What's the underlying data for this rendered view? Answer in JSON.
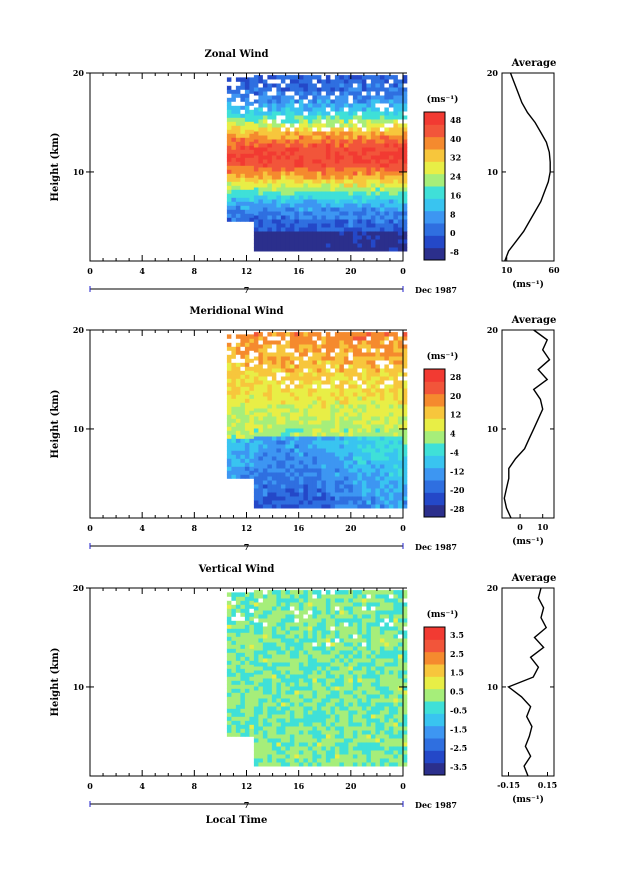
{
  "colors": {
    "scale": [
      "#2b2f8c",
      "#2448c8",
      "#2f6fe0",
      "#3d96f2",
      "#39c4f0",
      "#3fe0d8",
      "#a6ee7a",
      "#e8ee46",
      "#f7c63c",
      "#f58a2e",
      "#f2553a",
      "#f23a32"
    ]
  },
  "chart_data": [
    {
      "type": "heatmap",
      "title": "Zonal Wind",
      "ylabel": "Height (km)",
      "xlabel": "",
      "x_ticks": [
        "0",
        "4",
        "8",
        "12",
        "16",
        "20",
        "0"
      ],
      "y_ticks": [
        "10",
        "20"
      ],
      "date_marker": "7",
      "date_label": "Dec 1987",
      "xlim": [
        0,
        24
      ],
      "ylim": [
        1,
        20
      ],
      "data_start_hour": 10.5,
      "colorbar": {
        "unit": "(ms⁻¹)",
        "ticks": [
          "48",
          "40",
          "32",
          "24",
          "16",
          "8",
          "0",
          "-8"
        ],
        "min": -12,
        "max": 52
      },
      "profile": {
        "title": "Average",
        "xlabel": "(ms⁻¹)",
        "x_ticks": [
          "10",
          "60"
        ],
        "y_ticks": [
          "10",
          "20"
        ],
        "xlim": [
          5,
          60
        ],
        "heights": [
          1,
          2,
          3,
          4,
          5,
          6,
          7,
          8,
          9,
          10,
          11,
          12,
          13,
          14,
          15,
          16,
          17,
          18,
          19,
          20
        ],
        "values": [
          8,
          12,
          20,
          28,
          34,
          40,
          46,
          50,
          54,
          56,
          56,
          55,
          52,
          46,
          40,
          32,
          26,
          22,
          18,
          14
        ]
      }
    },
    {
      "type": "heatmap",
      "title": "Meridional Wind",
      "ylabel": "Height (km)",
      "xlabel": "",
      "x_ticks": [
        "0",
        "4",
        "8",
        "12",
        "16",
        "20",
        "0"
      ],
      "y_ticks": [
        "10",
        "20"
      ],
      "date_marker": "7",
      "date_label": "Dec 1987",
      "xlim": [
        0,
        24
      ],
      "ylim": [
        1,
        20
      ],
      "data_start_hour": 10.5,
      "colorbar": {
        "unit": "(ms⁻¹)",
        "ticks": [
          "28",
          "20",
          "12",
          "4",
          "-4",
          "-12",
          "-20",
          "-28"
        ],
        "min": -32,
        "max": 32
      },
      "profile": {
        "title": "Average",
        "xlabel": "(ms⁻¹)",
        "x_ticks": [
          "0",
          "10"
        ],
        "y_ticks": [
          "10",
          "20"
        ],
        "xlim": [
          -8,
          15
        ],
        "heights": [
          1,
          2,
          3,
          4,
          5,
          6,
          7,
          8,
          9,
          10,
          11,
          12,
          13,
          14,
          15,
          16,
          17,
          18,
          19,
          20
        ],
        "values": [
          -4,
          -6,
          -7,
          -6,
          -5,
          -5,
          -2,
          2,
          4,
          6,
          8,
          10,
          9,
          6,
          12,
          8,
          13,
          10,
          12,
          6
        ]
      }
    },
    {
      "type": "heatmap",
      "title": "Vertical Wind",
      "ylabel": "Height (km)",
      "xlabel": "Local Time",
      "x_ticks": [
        "0",
        "4",
        "8",
        "12",
        "16",
        "20",
        "0"
      ],
      "y_ticks": [
        "10",
        "20"
      ],
      "date_marker": "7",
      "date_label": "Dec 1987",
      "xlim": [
        0,
        24
      ],
      "ylim": [
        1,
        20
      ],
      "data_start_hour": 10.5,
      "colorbar": {
        "unit": "(ms⁻¹)",
        "ticks": [
          "3.5",
          "2.5",
          "1.5",
          "0.5",
          "-0.5",
          "-1.5",
          "-2.5",
          "-3.5"
        ],
        "min": -4,
        "max": 4
      },
      "profile": {
        "title": "Average",
        "xlabel": "(ms⁻¹)",
        "x_ticks": [
          "-0.15",
          "0.15"
        ],
        "y_ticks": [
          "10",
          "20"
        ],
        "xlim": [
          -0.2,
          0.2
        ],
        "heights": [
          1,
          2,
          3,
          4,
          5,
          6,
          7,
          8,
          9,
          10,
          11,
          12,
          13,
          14,
          15,
          16,
          17,
          18,
          19,
          20
        ],
        "values": [
          0.0,
          -0.03,
          0.02,
          -0.02,
          0.01,
          0.03,
          -0.01,
          0.02,
          -0.05,
          -0.15,
          0.04,
          0.08,
          0.02,
          0.12,
          0.05,
          0.14,
          0.1,
          0.12,
          0.08,
          0.1
        ]
      }
    }
  ]
}
